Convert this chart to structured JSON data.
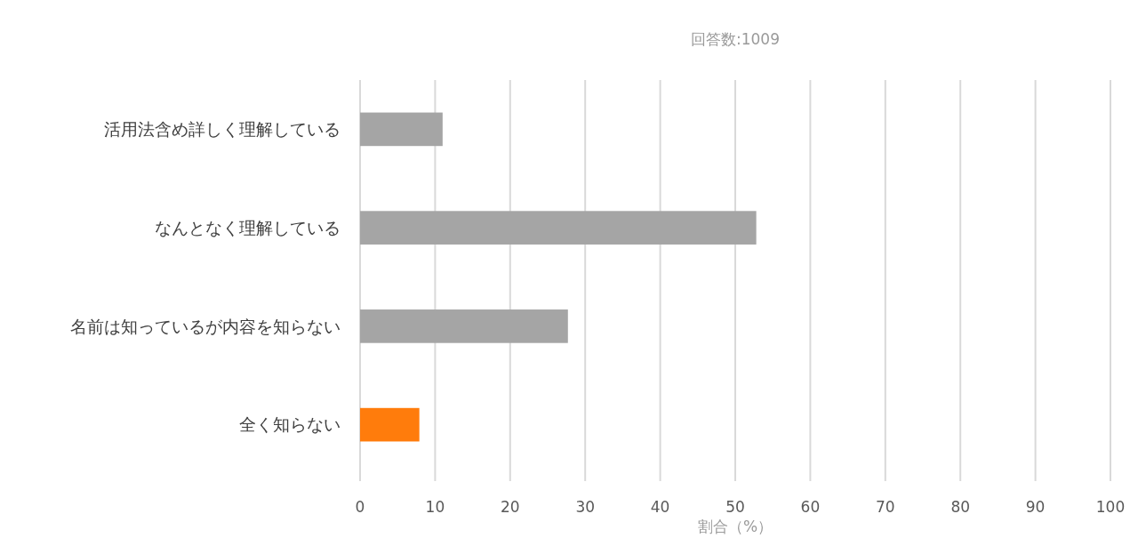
{
  "chart_data": {
    "type": "bar",
    "orientation": "horizontal",
    "title": "回答数:1009",
    "xlabel": "割合（%）",
    "categories": [
      "活用法含め詳しく理解している",
      "なんとなく理解している",
      "名前は知っているが内容を知らない",
      "全く知らない"
    ],
    "values": [
      11,
      52.8,
      27.7,
      7.9
    ],
    "colors": [
      "#a5a5a5",
      "#a5a5a5",
      "#a5a5a5",
      "#ff7c0c"
    ],
    "xlim": [
      0,
      100
    ],
    "xticks": [
      0,
      10,
      20,
      30,
      40,
      50,
      60,
      70,
      80,
      90,
      100
    ],
    "grid": "x"
  }
}
